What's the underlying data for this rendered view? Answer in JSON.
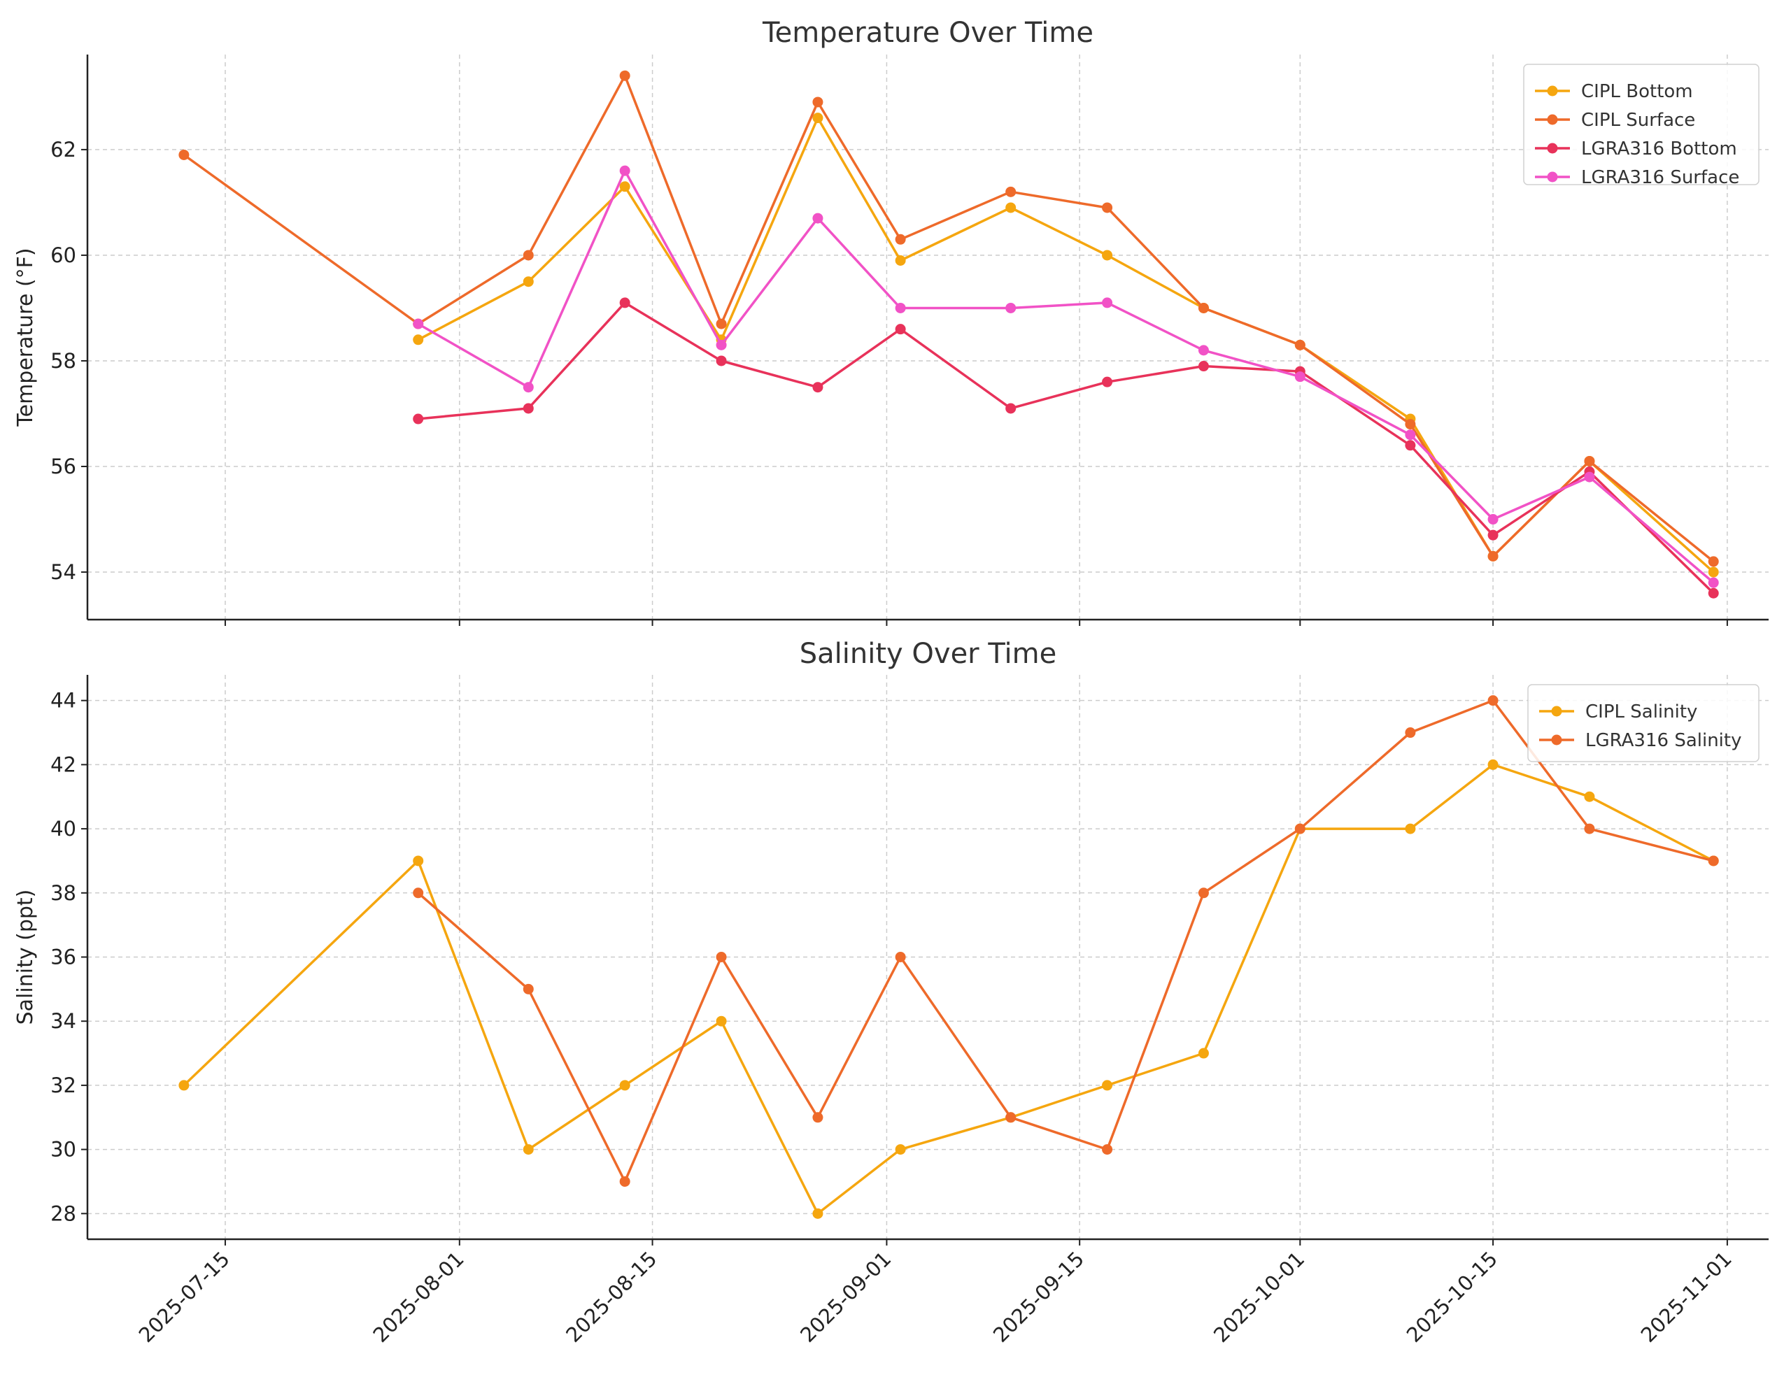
{
  "chart_data": [
    {
      "type": "line",
      "title": "Temperature Over Time",
      "xlabel": "",
      "ylabel": "Temperature (°F)",
      "xlim": [
        "2025-07-05",
        "2025-11-04"
      ],
      "ylim": [
        53.1,
        63.8
      ],
      "yticks": [
        54,
        56,
        58,
        60,
        62
      ],
      "xticks": [
        "2025-07-15",
        "2025-08-01",
        "2025-08-15",
        "2025-09-01",
        "2025-09-15",
        "2025-10-01",
        "2025-10-15",
        "2025-11-01"
      ],
      "grid": true,
      "legend_position": "top-right",
      "series": [
        {
          "name": "CIPL Bottom",
          "color": "#F5A60F",
          "points": [
            [
              "2025-07-29",
              58.4
            ],
            [
              "2025-08-06",
              59.5
            ],
            [
              "2025-08-13",
              61.3
            ],
            [
              "2025-08-20",
              58.4
            ],
            [
              "2025-08-27",
              62.6
            ],
            [
              "2025-09-02",
              59.9
            ],
            [
              "2025-09-10",
              60.9
            ],
            [
              "2025-09-17",
              60.0
            ],
            [
              "2025-09-24",
              59.0
            ],
            [
              "2025-10-01",
              58.3
            ],
            [
              "2025-10-09",
              56.9
            ],
            [
              "2025-10-15",
              54.3
            ],
            [
              "2025-10-22",
              56.1
            ],
            [
              "2025-10-31",
              54.0
            ]
          ]
        },
        {
          "name": "CIPL Surface",
          "color": "#EE6A2A",
          "points": [
            [
              "2025-07-12",
              61.9
            ],
            [
              "2025-07-29",
              58.7
            ],
            [
              "2025-08-06",
              60.0
            ],
            [
              "2025-08-13",
              63.4
            ],
            [
              "2025-08-20",
              58.7
            ],
            [
              "2025-08-27",
              62.9
            ],
            [
              "2025-09-02",
              60.3
            ],
            [
              "2025-09-10",
              61.2
            ],
            [
              "2025-09-17",
              60.9
            ],
            [
              "2025-09-24",
              59.0
            ],
            [
              "2025-10-01",
              58.3
            ],
            [
              "2025-10-09",
              56.8
            ],
            [
              "2025-10-15",
              54.3
            ],
            [
              "2025-10-22",
              56.1
            ],
            [
              "2025-10-31",
              54.2
            ]
          ]
        },
        {
          "name": "LGRA316 Bottom",
          "color": "#E8325A",
          "points": [
            [
              "2025-07-29",
              56.9
            ],
            [
              "2025-08-06",
              57.1
            ],
            [
              "2025-08-13",
              59.1
            ],
            [
              "2025-08-20",
              58.0
            ],
            [
              "2025-08-27",
              57.5
            ],
            [
              "2025-09-02",
              58.6
            ],
            [
              "2025-09-10",
              57.1
            ],
            [
              "2025-09-17",
              57.6
            ],
            [
              "2025-09-24",
              57.9
            ],
            [
              "2025-10-01",
              57.8
            ],
            [
              "2025-10-09",
              56.4
            ],
            [
              "2025-10-15",
              54.7
            ],
            [
              "2025-10-22",
              55.9
            ],
            [
              "2025-10-31",
              53.6
            ]
          ]
        },
        {
          "name": "LGRA316 Surface",
          "color": "#F152C6",
          "points": [
            [
              "2025-07-29",
              58.7
            ],
            [
              "2025-08-06",
              57.5
            ],
            [
              "2025-08-13",
              61.6
            ],
            [
              "2025-08-20",
              58.3
            ],
            [
              "2025-08-27",
              60.7
            ],
            [
              "2025-09-02",
              59.0
            ],
            [
              "2025-09-10",
              59.0
            ],
            [
              "2025-09-17",
              59.1
            ],
            [
              "2025-09-24",
              58.2
            ],
            [
              "2025-10-01",
              57.7
            ],
            [
              "2025-10-09",
              56.6
            ],
            [
              "2025-10-15",
              55.0
            ],
            [
              "2025-10-22",
              55.8
            ],
            [
              "2025-10-31",
              53.8
            ]
          ]
        }
      ]
    },
    {
      "type": "line",
      "title": "Salinity Over Time",
      "xlabel": "",
      "ylabel": "Salinity (ppt)",
      "xlim": [
        "2025-07-05",
        "2025-11-04"
      ],
      "ylim": [
        27.2,
        44.8
      ],
      "yticks": [
        28,
        30,
        32,
        34,
        36,
        38,
        40,
        42,
        44
      ],
      "xticks": [
        "2025-07-15",
        "2025-08-01",
        "2025-08-15",
        "2025-09-01",
        "2025-09-15",
        "2025-10-01",
        "2025-10-15",
        "2025-11-01"
      ],
      "grid": true,
      "legend_position": "top-right",
      "series": [
        {
          "name": "CIPL Salinity",
          "color": "#F5A60F",
          "points": [
            [
              "2025-07-12",
              32
            ],
            [
              "2025-07-29",
              39
            ],
            [
              "2025-08-06",
              30
            ],
            [
              "2025-08-13",
              32
            ],
            [
              "2025-08-20",
              34
            ],
            [
              "2025-08-27",
              28
            ],
            [
              "2025-09-02",
              30
            ],
            [
              "2025-09-10",
              31
            ],
            [
              "2025-09-17",
              32
            ],
            [
              "2025-09-24",
              33
            ],
            [
              "2025-10-01",
              40
            ],
            [
              "2025-10-09",
              40
            ],
            [
              "2025-10-15",
              42
            ],
            [
              "2025-10-22",
              41
            ],
            [
              "2025-10-31",
              39
            ]
          ]
        },
        {
          "name": "LGRA316 Salinity",
          "color": "#EE6A2A",
          "points": [
            [
              "2025-07-29",
              38
            ],
            [
              "2025-08-06",
              35
            ],
            [
              "2025-08-13",
              29
            ],
            [
              "2025-08-20",
              36
            ],
            [
              "2025-08-27",
              31
            ],
            [
              "2025-09-02",
              36
            ],
            [
              "2025-09-10",
              31
            ],
            [
              "2025-09-17",
              30
            ],
            [
              "2025-09-24",
              38
            ],
            [
              "2025-10-01",
              40
            ],
            [
              "2025-10-09",
              43
            ],
            [
              "2025-10-15",
              44
            ],
            [
              "2025-10-22",
              40
            ],
            [
              "2025-10-31",
              39
            ]
          ]
        }
      ]
    }
  ]
}
